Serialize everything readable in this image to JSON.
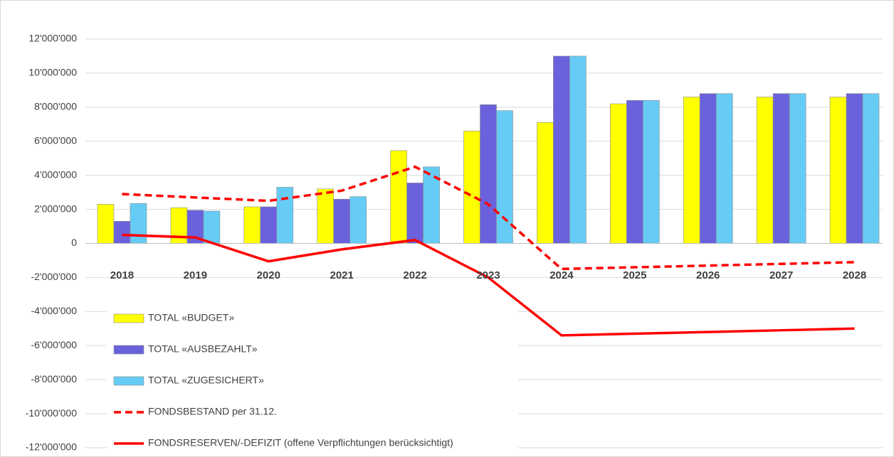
{
  "chart_data": {
    "type": "bar",
    "categories": [
      "2018",
      "2019",
      "2020",
      "2021",
      "2022",
      "2023",
      "2024",
      "2025",
      "2026",
      "2027",
      "2028"
    ],
    "series": [
      {
        "name": "TOTAL «BUDGET»",
        "type": "bar",
        "color": "#ffff00",
        "values": [
          2300000,
          2100000,
          2150000,
          3200000,
          5450000,
          6600000,
          7100000,
          8200000,
          8600000,
          8600000,
          8600000
        ]
      },
      {
        "name": "TOTAL «AUSBEZAHLT»",
        "type": "bar",
        "color": "#6a62dc",
        "values": [
          1300000,
          1950000,
          2150000,
          2600000,
          3550000,
          8150000,
          11000000,
          8400000,
          8800000,
          8800000,
          8800000
        ]
      },
      {
        "name": "TOTAL «ZUGESICHERT»",
        "type": "bar",
        "color": "#66ccf5",
        "values": [
          2350000,
          1900000,
          3300000,
          2750000,
          4500000,
          7800000,
          11000000,
          8400000,
          8800000,
          8800000,
          8800000
        ]
      },
      {
        "name": "FONDSBESTAND per 31.12.",
        "type": "line",
        "style": "dashed",
        "color": "#ff0000",
        "values": [
          2900000,
          2700000,
          2500000,
          3100000,
          4500000,
          2300000,
          -1500000,
          -1400000,
          -1300000,
          -1200000,
          -1100000
        ]
      },
      {
        "name": "FONDSRESERVEN/-DEFIZIT (offene Verpflichtungen berücksichtigt)",
        "type": "line",
        "style": "solid",
        "color": "#ff0000",
        "values": [
          500000,
          350000,
          -1050000,
          -350000,
          200000,
          -2000000,
          -5400000,
          -5300000,
          -5200000,
          -5100000,
          -5000000
        ]
      }
    ],
    "ylim": [
      -12000000,
      12000000
    ],
    "yticks": [
      {
        "value": -12000000,
        "label": "-12'000'000"
      },
      {
        "value": -10000000,
        "label": "-10'000'000"
      },
      {
        "value": -8000000,
        "label": "-8'000'000"
      },
      {
        "value": -6000000,
        "label": "-6'000'000"
      },
      {
        "value": -4000000,
        "label": "-4'000'000"
      },
      {
        "value": -2000000,
        "label": "-2'000'000"
      },
      0,
      {
        "value": 2000000,
        "label": "2'000'000"
      },
      {
        "value": 4000000,
        "label": "4'000'000"
      },
      {
        "value": 6000000,
        "label": "6'000'000"
      },
      {
        "value": 8000000,
        "label": "8'000'000"
      },
      {
        "value": 10000000,
        "label": "10'000'000"
      },
      {
        "value": 12000000,
        "label": "12'000'000"
      }
    ],
    "grid": true,
    "legend": "bottom-left"
  }
}
